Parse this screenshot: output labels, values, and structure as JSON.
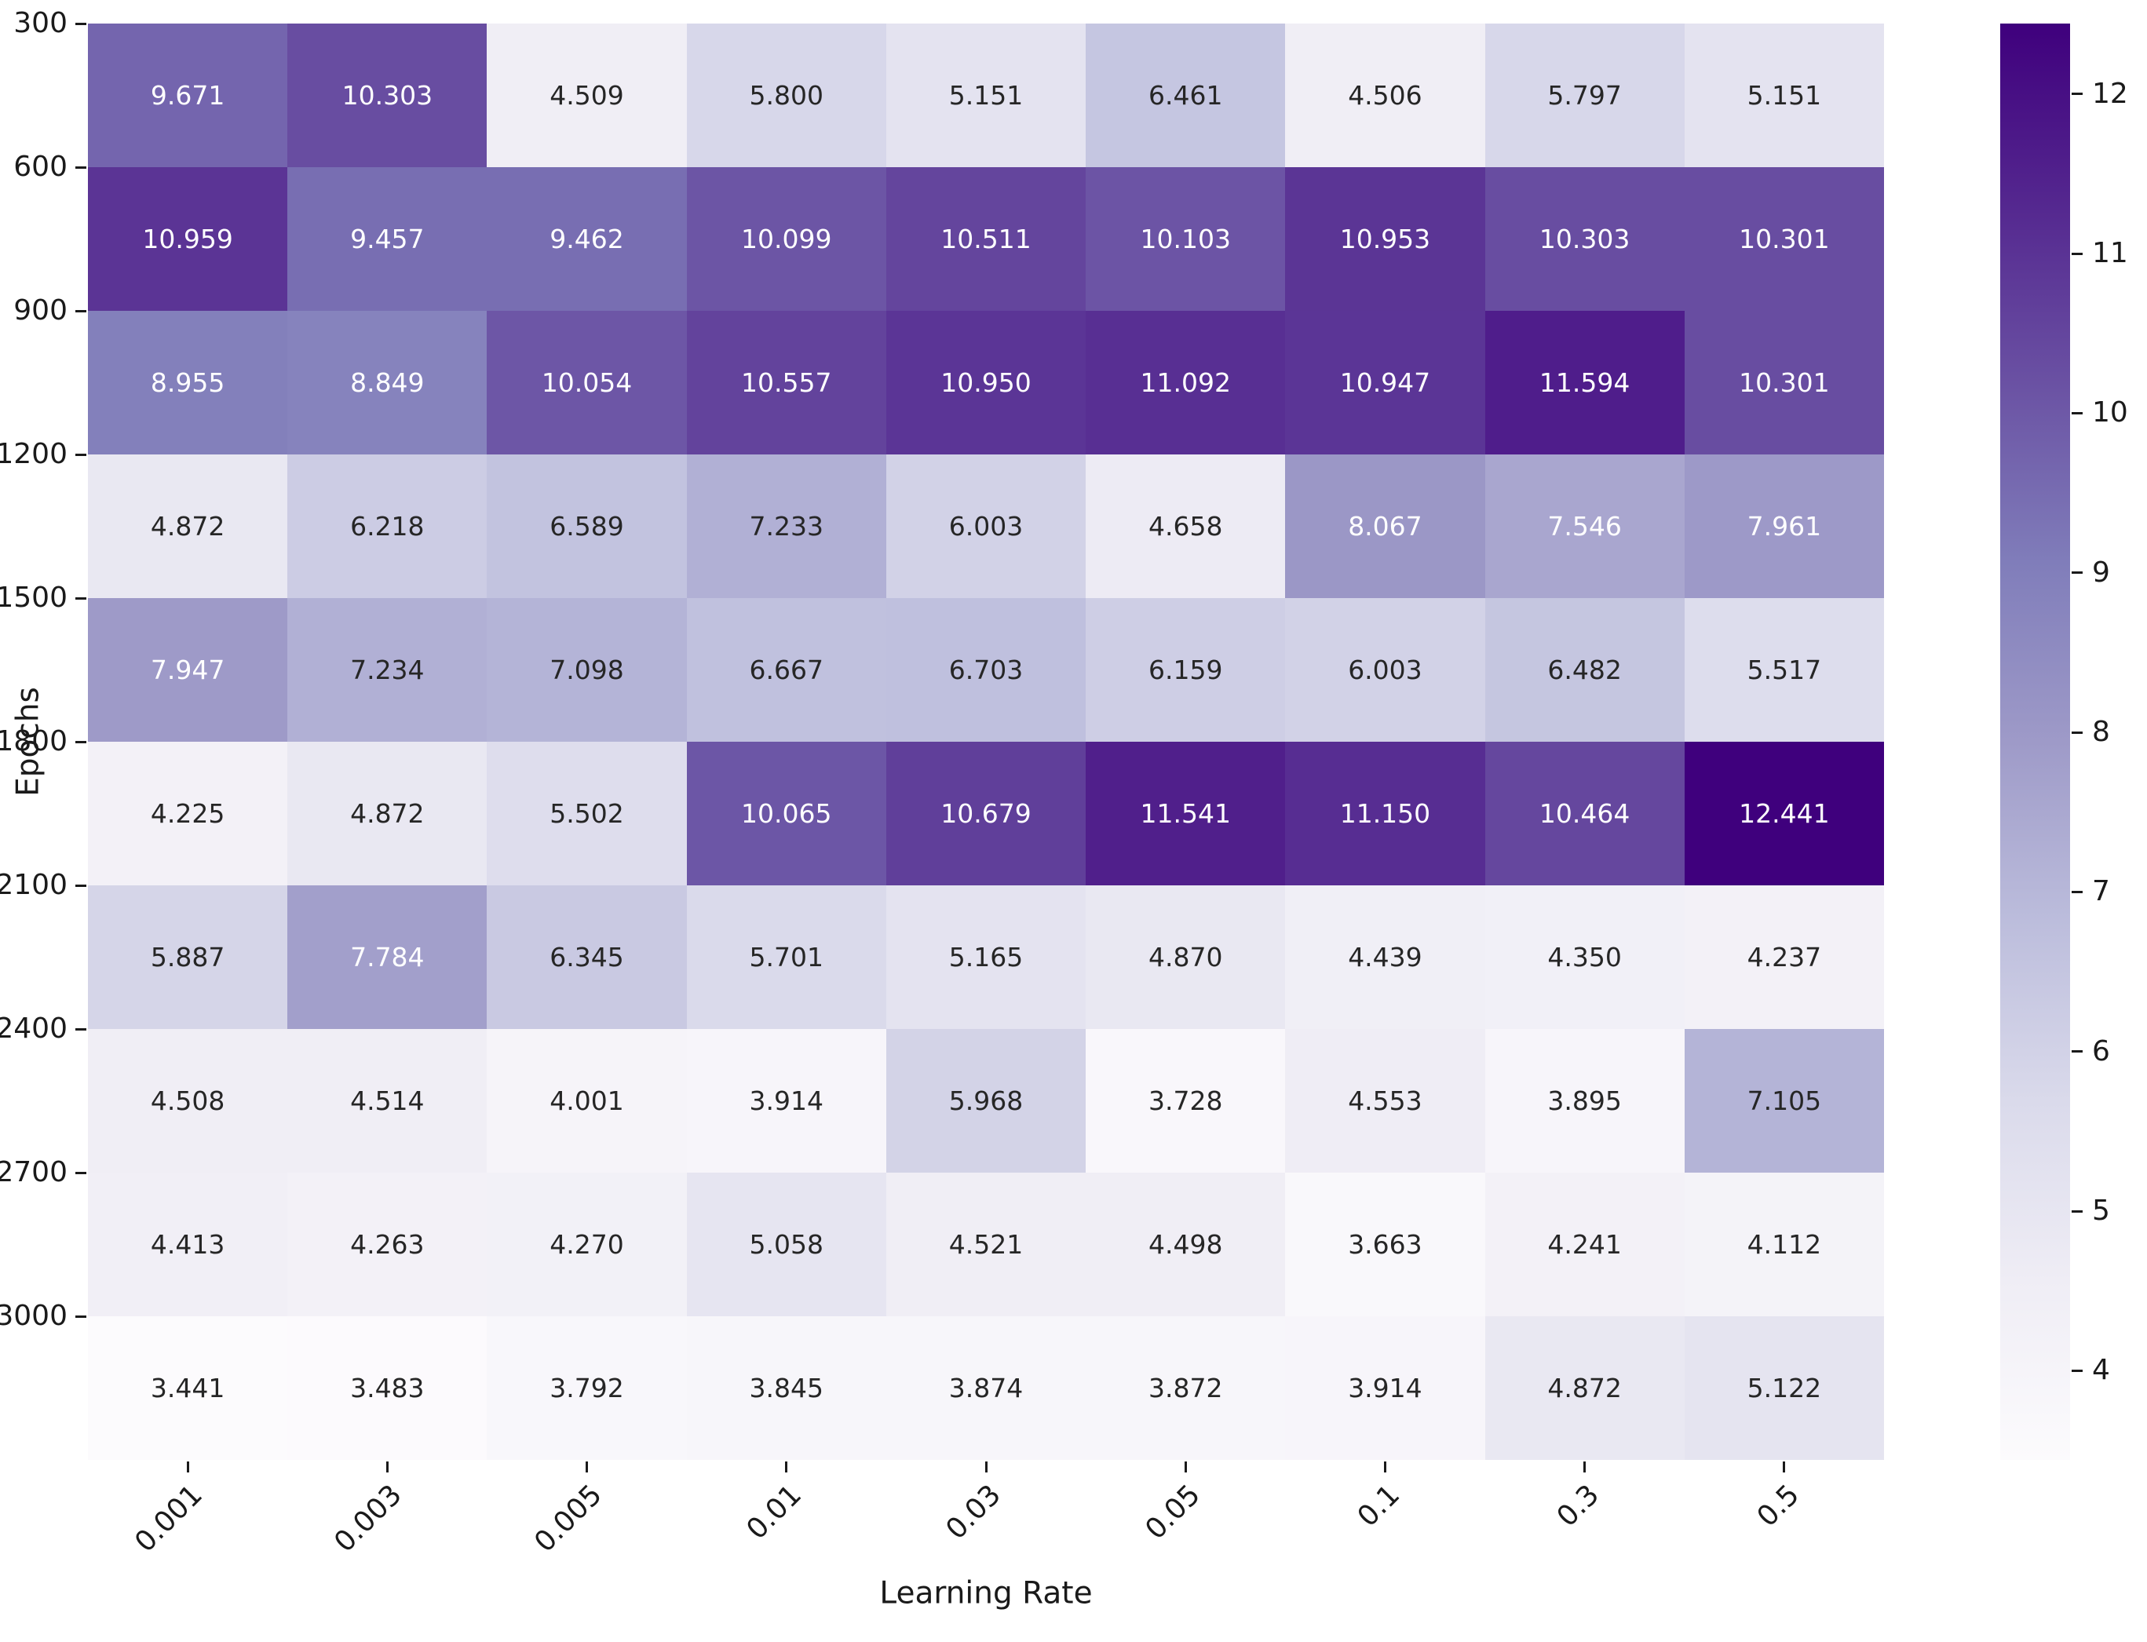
{
  "chart_data": {
    "type": "heatmap",
    "title": "",
    "xlabel": "Learning Rate",
    "ylabel": "Epochs",
    "x_categories": [
      "0.001",
      "0.003",
      "0.005",
      "0.01",
      "0.03",
      "0.05",
      "0.1",
      "0.3",
      "0.5"
    ],
    "y_categories": [
      "300",
      "600",
      "900",
      "1200",
      "1500",
      "1800",
      "2100",
      "2400",
      "2700",
      "3000"
    ],
    "rows": [
      [
        9.671,
        10.303,
        4.509,
        5.8,
        5.151,
        6.461,
        4.506,
        5.797,
        5.151
      ],
      [
        10.959,
        9.457,
        9.462,
        10.099,
        10.511,
        10.103,
        10.953,
        10.303,
        10.301
      ],
      [
        8.955,
        8.849,
        10.054,
        10.557,
        10.95,
        11.092,
        10.947,
        11.594,
        10.301
      ],
      [
        4.872,
        6.218,
        6.589,
        7.233,
        6.003,
        4.658,
        8.067,
        7.546,
        7.961
      ],
      [
        7.947,
        7.234,
        7.098,
        6.667,
        6.703,
        6.159,
        6.003,
        6.482,
        5.517
      ],
      [
        4.225,
        4.872,
        5.502,
        10.065,
        10.679,
        11.541,
        11.15,
        10.464,
        12.441
      ],
      [
        5.887,
        7.784,
        6.345,
        5.701,
        5.165,
        4.87,
        4.439,
        4.35,
        4.237
      ],
      [
        4.508,
        4.514,
        4.001,
        3.914,
        5.968,
        3.728,
        4.553,
        3.895,
        7.105
      ],
      [
        4.413,
        4.263,
        4.27,
        5.058,
        4.521,
        4.498,
        3.663,
        4.241,
        4.112
      ],
      [
        3.441,
        3.483,
        3.792,
        3.845,
        3.874,
        3.872,
        3.914,
        4.872,
        5.122
      ]
    ],
    "value_format_decimals": 3,
    "vmin": 3.441,
    "vmax": 12.441,
    "colorbar_ticks": [
      "4",
      "5",
      "6",
      "7",
      "8",
      "9",
      "10",
      "11",
      "12"
    ],
    "colorbar_position": "right",
    "colormap": {
      "name": "Purples",
      "stops": [
        {
          "at": 0.0,
          "color": "#fcfbfd"
        },
        {
          "at": 0.125,
          "color": "#efedf5"
        },
        {
          "at": 0.25,
          "color": "#dadaeb"
        },
        {
          "at": 0.375,
          "color": "#bcbddc"
        },
        {
          "at": 0.5,
          "color": "#9e9ac8"
        },
        {
          "at": 0.625,
          "color": "#807dba"
        },
        {
          "at": 0.75,
          "color": "#6a51a3"
        },
        {
          "at": 0.875,
          "color": "#54278f"
        },
        {
          "at": 1.0,
          "color": "#3f007d"
        }
      ]
    },
    "annotation_text_colors": {
      "light": "#ffffff",
      "dark": "#262626"
    },
    "grid": false,
    "legend": false,
    "x_tick_rotation_deg": 45
  }
}
